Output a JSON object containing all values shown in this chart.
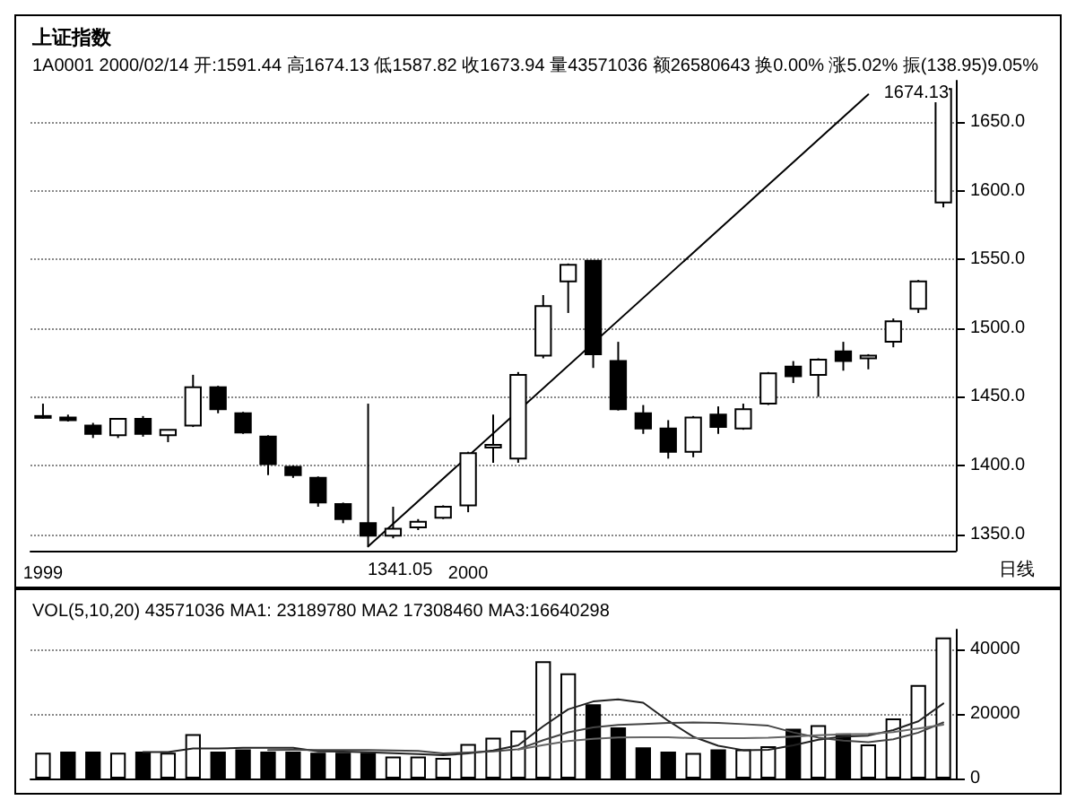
{
  "chart_data": [
    {
      "type": "candlestick",
      "title": "上证指数",
      "subtitle": "1A0001 2000/02/14 开:1591.44 高1674.13 低1587.82 收1673.94 量43571036 额26580643 换0.00% 涨5.02% 振(138.95)9.05%",
      "categories": [
        "1999",
        null,
        null,
        null,
        null,
        null,
        null,
        null,
        null,
        null,
        null,
        null,
        null,
        null,
        null,
        null,
        null,
        "2000",
        null,
        null,
        null,
        null,
        null,
        null,
        null,
        null,
        null,
        null,
        null,
        null,
        null,
        null,
        null,
        null,
        null,
        null,
        null
      ],
      "ohlc": [
        [
          1436,
          1445,
          1434,
          1435
        ],
        [
          1435,
          1437,
          1432,
          1433
        ],
        [
          1429,
          1431,
          1420,
          1423
        ],
        [
          1422,
          1434,
          1420,
          1434
        ],
        [
          1434,
          1436,
          1421,
          1423
        ],
        [
          1422,
          1426,
          1417,
          1426
        ],
        [
          1429,
          1466,
          1428,
          1457
        ],
        [
          1457,
          1458,
          1438,
          1441
        ],
        [
          1438,
          1439,
          1423,
          1424
        ],
        [
          1421,
          1422,
          1393,
          1401
        ],
        [
          1399,
          1400,
          1391,
          1393
        ],
        [
          1391,
          1392,
          1370,
          1373
        ],
        [
          1372,
          1373,
          1358,
          1361
        ],
        [
          1358,
          1445,
          1341.05,
          1349
        ],
        [
          1349,
          1370,
          1347,
          1354
        ],
        [
          1355,
          1361,
          1353,
          1359
        ],
        [
          1362,
          1371,
          1361,
          1370
        ],
        [
          1371,
          1410,
          1366,
          1409
        ],
        [
          1413,
          1437,
          1402,
          1415
        ],
        [
          1405,
          1468,
          1402,
          1466
        ],
        [
          1480,
          1524,
          1478,
          1516
        ],
        [
          1534,
          1547,
          1511,
          1546
        ],
        [
          1549,
          1549,
          1471,
          1481
        ],
        [
          1476,
          1490,
          1440,
          1441
        ],
        [
          1438,
          1444,
          1423,
          1427
        ],
        [
          1427,
          1433,
          1405,
          1410
        ],
        [
          1410,
          1436,
          1406,
          1435
        ],
        [
          1437,
          1443,
          1423,
          1428
        ],
        [
          1427,
          1445,
          1426,
          1441
        ],
        [
          1445,
          1468,
          1444,
          1467
        ],
        [
          1472,
          1476,
          1460,
          1465
        ],
        [
          1466,
          1478,
          1450,
          1477
        ],
        [
          1483,
          1490,
          1469,
          1476
        ],
        [
          1478,
          1481,
          1470,
          1480
        ],
        [
          1490,
          1507,
          1486,
          1505
        ],
        [
          1514,
          1535,
          1511,
          1534
        ],
        [
          1591.44,
          1674.13,
          1587.82,
          1673.94
        ]
      ],
      "color": "#000000",
      "series": [
        {
          "type": "line",
          "color": "#000000",
          "values": [
            null,
            null,
            null,
            null,
            null,
            null,
            null,
            null,
            null,
            null,
            null,
            null,
            null,
            1341.05,
            null,
            null,
            null,
            null,
            null,
            null,
            null,
            null,
            null,
            null,
            null,
            null,
            null,
            null,
            null,
            null,
            null,
            null,
            null,
            1670,
            null,
            null,
            null
          ]
        }
      ],
      "ylim": [
        1338,
        1680
      ],
      "yticks": [
        {
          "value": 1350,
          "label": "1350.0"
        },
        {
          "value": 1400,
          "label": "1400.0"
        },
        {
          "value": 1450,
          "label": "1450.0"
        },
        {
          "value": 1500,
          "label": "1500.0"
        },
        {
          "value": 1550,
          "label": "1550.0"
        },
        {
          "value": 1600,
          "label": "1600.0"
        },
        {
          "value": 1650,
          "label": "1650.0"
        }
      ],
      "grid": "y",
      "annotations": [
        "1674.13",
        "1341.05",
        "日线"
      ]
    },
    {
      "type": "bar",
      "title": "VOL(5,10,20) 43571036 MA1: 23189780 MA2 17308460 MA3:16640298",
      "categories": [
        null,
        null,
        null,
        null,
        null,
        null,
        null,
        null,
        null,
        null,
        null,
        null,
        null,
        null,
        null,
        null,
        null,
        null,
        null,
        null,
        null,
        null,
        null,
        null,
        null,
        null,
        null,
        null,
        null,
        null,
        null,
        null,
        null,
        null,
        null,
        null,
        null
      ],
      "series": [
        {
          "type": "bar",
          "values": [
            8000,
            8300,
            8300,
            8000,
            8300,
            8000,
            13700,
            8300,
            9000,
            8300,
            8300,
            8000,
            8000,
            8000,
            6800,
            6800,
            6400,
            10700,
            12600,
            14800,
            36200,
            32500,
            22900,
            15800,
            9600,
            8300,
            7900,
            9000,
            9000,
            10000,
            15400,
            16500,
            13900,
            10500,
            18600,
            28900,
            43571
          ],
          "colors": [
            "#ffffff",
            "#000000",
            "#000000",
            "#ffffff",
            "#000000",
            "#ffffff",
            "#ffffff",
            "#000000",
            "#000000",
            "#000000",
            "#000000",
            "#000000",
            "#000000",
            "#000000",
            "#ffffff",
            "#ffffff",
            "#ffffff",
            "#ffffff",
            "#ffffff",
            "#ffffff",
            "#ffffff",
            "#ffffff",
            "#000000",
            "#000000",
            "#000000",
            "#000000",
            "#ffffff",
            "#000000",
            "#ffffff",
            "#ffffff",
            "#000000",
            "#ffffff",
            "#000000",
            "#ffffff",
            "#ffffff",
            "#ffffff",
            "#ffffff"
          ]
        },
        {
          "type": "line",
          "color": "#222222",
          "values": [
            null,
            null,
            null,
            null,
            8180,
            8180,
            9260,
            9260,
            9460,
            9460,
            9520,
            8380,
            8320,
            8120,
            7820,
            7520,
            7200,
            7740,
            8660,
            10260,
            16140,
            21360,
            23800,
            24440,
            23400,
            17820,
            12900,
            10120,
            8760,
            8840,
            10260,
            11980,
            12960,
            13260,
            14980,
            17680,
            23190
          ]
        },
        {
          "type": "line",
          "color": "#444444",
          "values": [
            null,
            null,
            null,
            null,
            null,
            null,
            null,
            null,
            null,
            8820,
            8850,
            8820,
            8790,
            8790,
            8640,
            8520,
            7790,
            8030,
            8390,
            9040,
            11830,
            14280,
            15770,
            16550,
            16830,
            17180,
            17330,
            17160,
            16800,
            16320,
            14240,
            12640,
            11740,
            11210,
            12110,
            14170,
            17308
          ]
        },
        {
          "type": "line",
          "color": "#666666",
          "values": [
            null,
            null,
            null,
            null,
            null,
            null,
            null,
            null,
            null,
            null,
            null,
            null,
            null,
            null,
            null,
            null,
            null,
            null,
            null,
            8930,
            10340,
            11550,
            12280,
            12670,
            12740,
            12750,
            12460,
            12500,
            12500,
            12580,
            12940,
            13360,
            13660,
            13780,
            14370,
            15480,
            16640
          ]
        }
      ],
      "ylim": [
        0,
        46000
      ],
      "yticks": [
        0,
        20000,
        40000
      ],
      "grid": "y"
    }
  ]
}
